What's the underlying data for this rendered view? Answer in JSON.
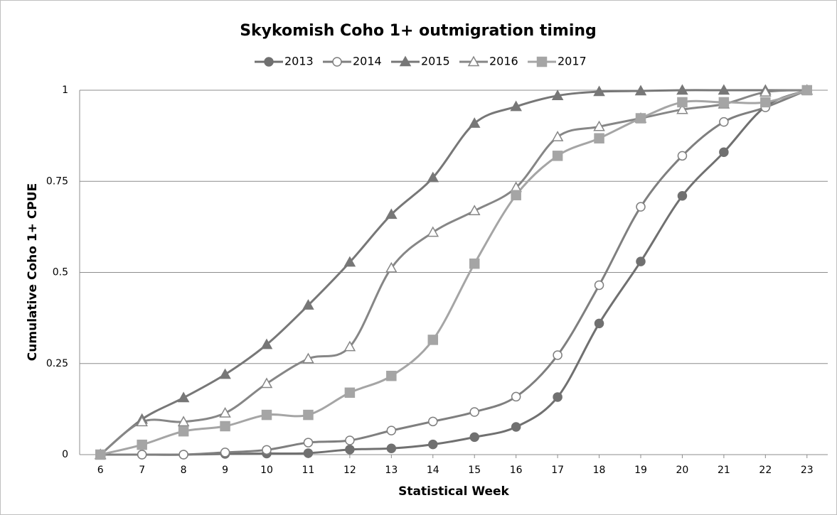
{
  "chart_data": {
    "type": "line",
    "title": "Skykomish Coho 1+ outmigration timing",
    "x_label": "Statistical Week",
    "y_label": "Cumulative Coho 1+ CPUE",
    "x": [
      6,
      7,
      8,
      9,
      10,
      11,
      12,
      13,
      14,
      15,
      16,
      17,
      18,
      19,
      20,
      21,
      22,
      23
    ],
    "xlim": [
      5.5,
      23.5
    ],
    "xticks": [
      6,
      7,
      8,
      9,
      10,
      11,
      12,
      13,
      14,
      15,
      16,
      17,
      18,
      19,
      20,
      21,
      22,
      23
    ],
    "ylim": [
      0,
      1
    ],
    "yticks": [
      0,
      0.25,
      0.5,
      0.75,
      1
    ],
    "grid": true,
    "legend": "top",
    "series": [
      {
        "name": "2013",
        "color": "#707070",
        "marker": "circle",
        "filled": true,
        "values": [
          0,
          0,
          0,
          0.002,
          0.003,
          0.004,
          0.014,
          0.017,
          0.028,
          0.048,
          0.076,
          0.158,
          0.36,
          0.53,
          0.71,
          0.83,
          0.955,
          1
        ]
      },
      {
        "name": "2014",
        "color": "#7f7f7f",
        "marker": "circle",
        "filled": false,
        "values": [
          0,
          0,
          0,
          0.006,
          0.013,
          0.033,
          0.039,
          0.066,
          0.091,
          0.117,
          0.159,
          0.273,
          0.465,
          0.68,
          0.82,
          0.913,
          0.953,
          1
        ]
      },
      {
        "name": "2015",
        "color": "#777777",
        "marker": "triangle",
        "filled": true,
        "values": [
          0,
          0.097,
          0.156,
          0.22,
          0.302,
          0.41,
          0.528,
          0.659,
          0.76,
          0.909,
          0.955,
          0.985,
          0.996,
          0.998,
          1,
          1,
          1,
          1
        ]
      },
      {
        "name": "2016",
        "color": "#868686",
        "marker": "triangle",
        "filled": false,
        "values": [
          0,
          0.09,
          0.09,
          0.114,
          0.195,
          0.263,
          0.296,
          0.512,
          0.61,
          0.669,
          0.733,
          0.872,
          0.9,
          0.923,
          0.947,
          0.962,
          0.995,
          1
        ]
      },
      {
        "name": "2017",
        "color": "#a5a5a5",
        "marker": "square",
        "filled": true,
        "values": [
          0,
          0.027,
          0.064,
          0.078,
          0.109,
          0.109,
          0.17,
          0.216,
          0.315,
          0.524,
          0.712,
          0.82,
          0.868,
          0.923,
          0.967,
          0.967,
          0.967,
          1
        ]
      }
    ]
  }
}
